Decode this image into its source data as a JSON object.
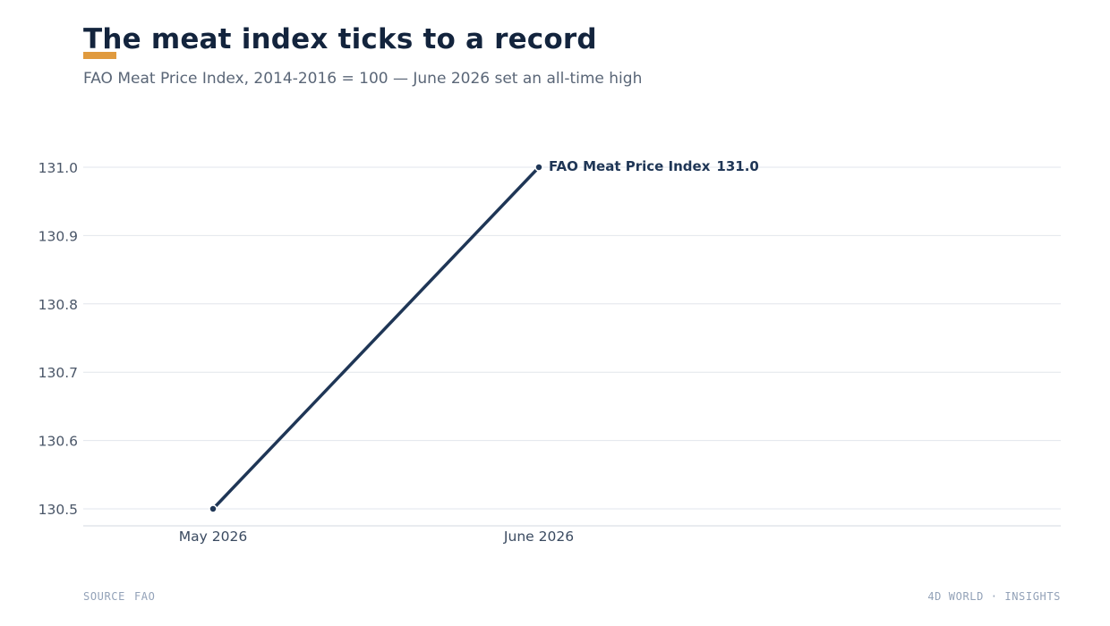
{
  "header": {
    "title": "The meat index ticks to a record",
    "subtitle": "FAO Meat Price Index, 2014-2016 = 100 — June 2026 set an all-time high"
  },
  "chart_data": {
    "type": "line",
    "title": "The meat index ticks to a record",
    "subtitle": "FAO Meat Price Index, 2014-2016 = 100 — June 2026 set an all-time high",
    "categories": [
      "May 2026",
      "June 2026"
    ],
    "series": [
      {
        "name": "FAO Meat Price Index",
        "values": [
          130.5,
          131.0
        ]
      }
    ],
    "end_label": "131.0",
    "xlabel": "",
    "ylabel": "",
    "ylim": [
      130.5,
      131.0
    ],
    "yticks": [
      "130.5",
      "130.6",
      "130.7",
      "130.8",
      "130.9",
      "131.0"
    ],
    "grid": true,
    "legend": "direct label at line end",
    "colors": {
      "line": "#1f3656",
      "accent": "#e09a3e",
      "grid": "#e2e6ec"
    }
  },
  "footer": {
    "source_label": "SOURCE",
    "source_value": "FAO",
    "brand": "4D WORLD · INSIGHTS"
  }
}
